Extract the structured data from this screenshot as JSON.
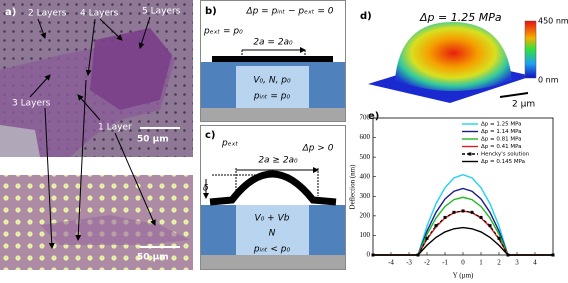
{
  "panel_a": {
    "label": "a)",
    "layers": [
      "2 Layers",
      "4 Layers",
      "5 Layers",
      "3 Layers",
      "1 Layer"
    ],
    "scale_top": "50 µm",
    "scale_bottom": "50 µm"
  },
  "panel_b": {
    "label": "b)",
    "equation": "Δp = pᵢₙₜ − pₑₓₜ = 0",
    "outside": "pₑₓₜ = p₀",
    "width": "2a = 2a₀",
    "contents": "V₀, N, p₀",
    "inside": "pᵢₙₜ = p₀"
  },
  "panel_c": {
    "label": "c)",
    "outside": "pₑₓₜ",
    "pressure": "Δp > 0",
    "width": "2a ≥ 2a₀",
    "delta": "δ",
    "volume": "V₀ + Vb",
    "count": "N",
    "inside": "pᵢₙₜ < p₀"
  },
  "panel_d": {
    "label": "d)",
    "title": "Δp = 1.25 MPa",
    "colorbar_max": "450 nm",
    "colorbar_min": "0 nm",
    "scale": "2 µm"
  },
  "chart_data": {
    "type": "line",
    "label": "e)",
    "x_label": "Y (µm)",
    "y_label": "Deflection (nm)",
    "x": [
      -5,
      -2.5,
      -2,
      -1.5,
      -1,
      -0.5,
      0,
      0.5,
      1,
      1.5,
      2,
      2.5,
      5
    ],
    "xlim": [
      -5,
      5
    ],
    "xticks": [
      -4,
      -3,
      -2,
      -1,
      0,
      1,
      2,
      3,
      4
    ],
    "ylim": [
      0,
      700
    ],
    "yticks": [
      0,
      100,
      200,
      300,
      400,
      500,
      600,
      700
    ],
    "series": [
      {
        "name": "Δp = 1.25 MPa",
        "color": "#22d3f0",
        "values": [
          0,
          0,
          148,
          262,
          344,
          394,
          410,
          394,
          344,
          262,
          148,
          0,
          0
        ]
      },
      {
        "name": "Δp = 1.14 MPa",
        "color": "#1a1a8c",
        "values": [
          0,
          0,
          122,
          218,
          286,
          326,
          340,
          326,
          286,
          218,
          122,
          0,
          0
        ]
      },
      {
        "name": "Δp = 0.81 MPa",
        "color": "#22b822",
        "values": [
          0,
          0,
          106,
          189,
          248,
          283,
          295,
          283,
          248,
          189,
          106,
          0,
          0
        ]
      },
      {
        "name": "Δp = 0.41 MPa",
        "color": "#e02020",
        "values": [
          0,
          0,
          81,
          144,
          189,
          216,
          225,
          216,
          189,
          144,
          81,
          0,
          0
        ]
      },
      {
        "name": "Hencky's solution",
        "color": "#000000",
        "style": "dashed",
        "marker": "square",
        "values": [
          0,
          0,
          85,
          150,
          192,
          218,
          225,
          218,
          192,
          150,
          85,
          0,
          0
        ]
      },
      {
        "name": "Δp = 0.145 MPa",
        "color": "#000000",
        "values": [
          0,
          0,
          50,
          90,
          118,
          134,
          140,
          134,
          118,
          90,
          50,
          0,
          0
        ]
      }
    ]
  }
}
